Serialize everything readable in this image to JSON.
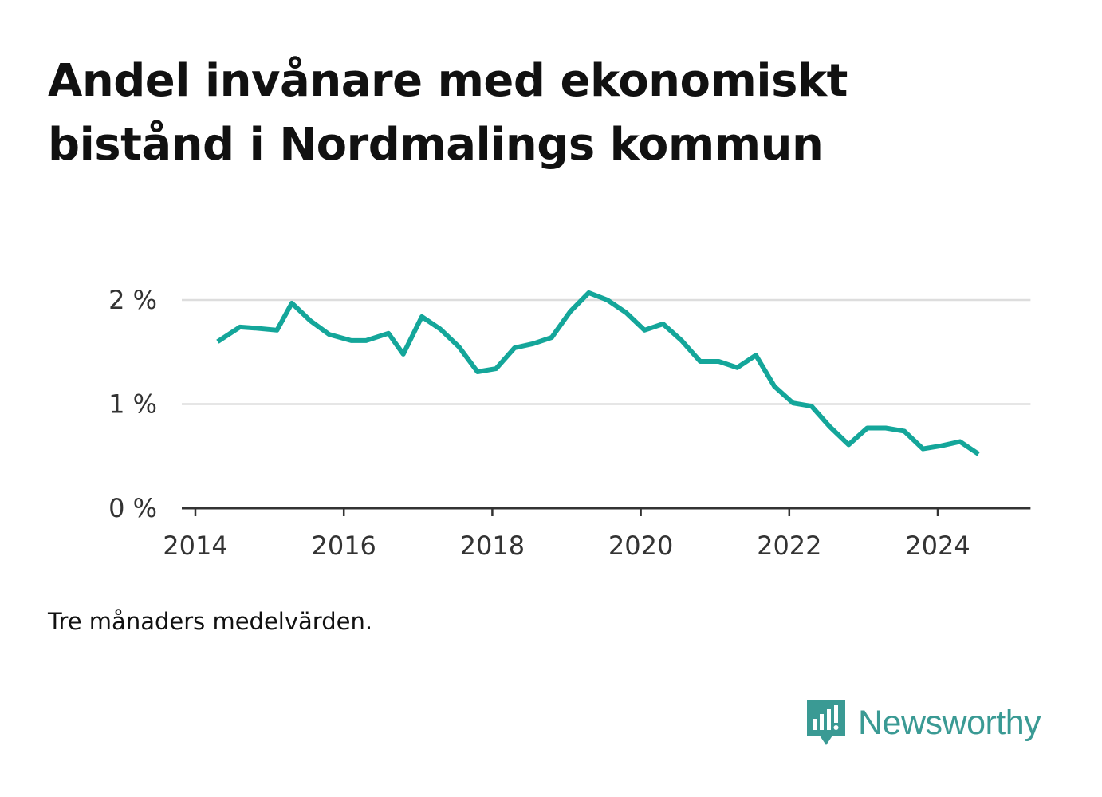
{
  "title_lines": [
    "Andel invånare med ekonomiskt",
    "bistånd i Nordmalings kommun"
  ],
  "note": "Tre månaders medelvärden.",
  "brand": {
    "name": "Newsworthy",
    "color": "#3a9a94",
    "logo_icon": "bar-chart-speech-bubble-icon"
  },
  "chart_data": {
    "type": "line",
    "title": "Andel invånare med ekonomiskt bistånd i Nordmalings kommun",
    "xlabel": "",
    "ylabel": "",
    "xlim": [
      2014,
      2025.25
    ],
    "ylim": [
      0,
      2
    ],
    "x_ticks": [
      2014,
      2016,
      2018,
      2020,
      2022,
      2024
    ],
    "y_ticks": [
      {
        "value": 0,
        "label": "0 %"
      },
      {
        "value": 1,
        "label": "1 %"
      },
      {
        "value": 2,
        "label": "2 %"
      }
    ],
    "grid": "horizontal",
    "line_color": "#14a69a",
    "series": [
      {
        "values": [
          [
            2014.3,
            1.6
          ],
          [
            2014.6,
            1.74
          ],
          [
            2014.8,
            1.73
          ],
          [
            2015.1,
            1.71
          ],
          [
            2015.3,
            1.97
          ],
          [
            2015.55,
            1.8
          ],
          [
            2015.8,
            1.67
          ],
          [
            2016.1,
            1.61
          ],
          [
            2016.3,
            1.61
          ],
          [
            2016.6,
            1.68
          ],
          [
            2016.8,
            1.48
          ],
          [
            2017.05,
            1.84
          ],
          [
            2017.3,
            1.72
          ],
          [
            2017.55,
            1.55
          ],
          [
            2017.8,
            1.31
          ],
          [
            2018.05,
            1.34
          ],
          [
            2018.3,
            1.54
          ],
          [
            2018.55,
            1.58
          ],
          [
            2018.8,
            1.64
          ],
          [
            2019.05,
            1.89
          ],
          [
            2019.3,
            2.07
          ],
          [
            2019.55,
            2.0
          ],
          [
            2019.8,
            1.88
          ],
          [
            2020.05,
            1.71
          ],
          [
            2020.3,
            1.77
          ],
          [
            2020.55,
            1.61
          ],
          [
            2020.8,
            1.41
          ],
          [
            2021.05,
            1.41
          ],
          [
            2021.3,
            1.35
          ],
          [
            2021.55,
            1.47
          ],
          [
            2021.8,
            1.17
          ],
          [
            2022.05,
            1.01
          ],
          [
            2022.3,
            0.98
          ],
          [
            2022.55,
            0.78
          ],
          [
            2022.8,
            0.61
          ],
          [
            2023.05,
            0.77
          ],
          [
            2023.3,
            0.77
          ],
          [
            2023.55,
            0.74
          ],
          [
            2023.8,
            0.57
          ],
          [
            2024.05,
            0.6
          ],
          [
            2024.3,
            0.64
          ],
          [
            2024.55,
            0.52
          ]
        ]
      }
    ]
  }
}
